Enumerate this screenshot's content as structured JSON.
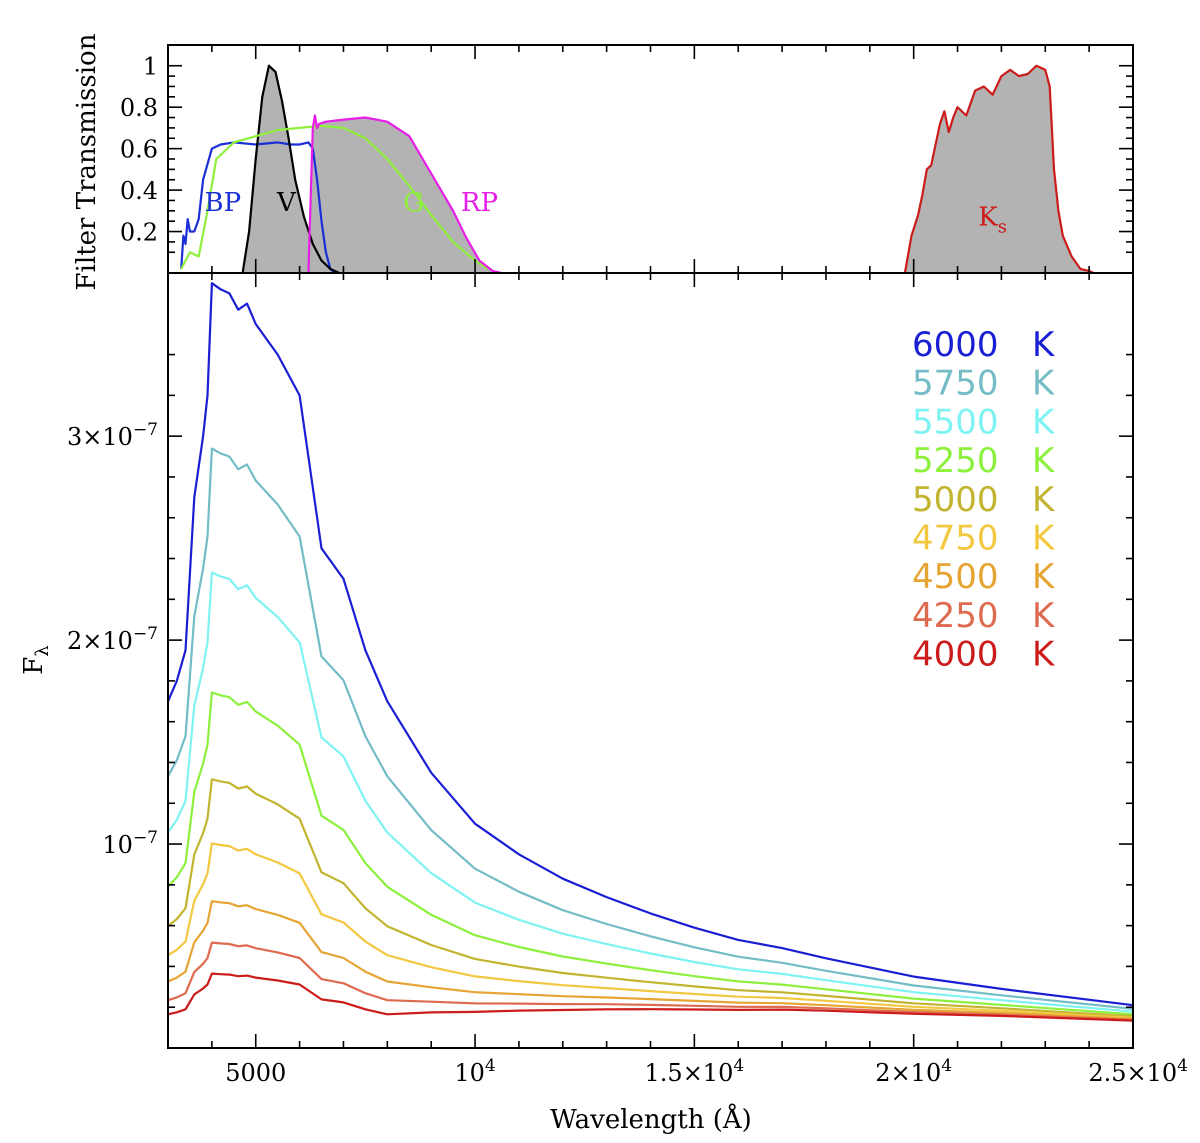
{
  "chart_data": [
    {
      "panel": "top",
      "type": "area",
      "ylabel": "Filter Transmission",
      "xlim": [
        3000,
        25000
      ],
      "ylim": [
        0,
        1.1
      ],
      "ytick_values": [
        0.2,
        0.4,
        0.6,
        0.8,
        1
      ],
      "ytick_labels": [
        "0.2",
        "0.4",
        "0.6",
        "0.8",
        "1"
      ],
      "series": [
        {
          "name": "BP",
          "label": "BP",
          "color": "#1a2fd6",
          "fill": false,
          "x": [
            3300,
            3350,
            3400,
            3450,
            3500,
            3600,
            3700,
            3800,
            4000,
            4200,
            4500,
            5000,
            5500,
            5800,
            6000,
            6200,
            6300,
            6400,
            6500,
            6600,
            6700,
            6800
          ],
          "y": [
            0.02,
            0.18,
            0.14,
            0.26,
            0.2,
            0.2,
            0.26,
            0.45,
            0.6,
            0.62,
            0.63,
            0.62,
            0.63,
            0.62,
            0.62,
            0.63,
            0.6,
            0.45,
            0.25,
            0.1,
            0.02,
            0
          ]
        },
        {
          "name": "V",
          "label": "V",
          "color": "#000000",
          "fill": true,
          "x": [
            4700,
            4850,
            5000,
            5150,
            5300,
            5450,
            5600,
            5750,
            5900,
            6100,
            6300,
            6500,
            6700,
            6900
          ],
          "y": [
            0,
            0.2,
            0.55,
            0.85,
            1.0,
            0.97,
            0.83,
            0.65,
            0.45,
            0.27,
            0.14,
            0.06,
            0.02,
            0
          ]
        },
        {
          "name": "G",
          "label": "G",
          "color": "#8ef03a",
          "fill": false,
          "x": [
            3300,
            3500,
            3700,
            3900,
            4100,
            4500,
            5000,
            5500,
            6000,
            6500,
            7000,
            7500,
            8000,
            8500,
            9000,
            9500,
            10000,
            10300
          ],
          "y": [
            0.02,
            0.1,
            0.08,
            0.3,
            0.55,
            0.63,
            0.66,
            0.69,
            0.7,
            0.71,
            0.7,
            0.65,
            0.55,
            0.42,
            0.28,
            0.15,
            0.06,
            0.02
          ]
        },
        {
          "name": "RP",
          "label": "RP",
          "color": "#e81de8",
          "fill": true,
          "x": [
            6200,
            6300,
            6350,
            6400,
            6450,
            6600,
            7000,
            7500,
            8000,
            8500,
            9000,
            9500,
            9800,
            10100,
            10400,
            10600
          ],
          "y": [
            0,
            0.7,
            0.76,
            0.7,
            0.72,
            0.73,
            0.74,
            0.75,
            0.73,
            0.66,
            0.48,
            0.3,
            0.17,
            0.06,
            0.01,
            0
          ]
        },
        {
          "name": "Ks",
          "label": "K",
          "label_sub": "s",
          "color": "#cc1b1b",
          "fill": true,
          "x": [
            19800,
            19950,
            20100,
            20200,
            20300,
            20400,
            20500,
            20600,
            20700,
            20800,
            20900,
            21000,
            21200,
            21400,
            21600,
            21800,
            22000,
            22200,
            22400,
            22600,
            22800,
            23000,
            23100,
            23200,
            23300,
            23400,
            23600,
            23800,
            24000,
            24100
          ],
          "y": [
            0,
            0.18,
            0.28,
            0.38,
            0.5,
            0.52,
            0.62,
            0.72,
            0.78,
            0.68,
            0.75,
            0.8,
            0.76,
            0.88,
            0.9,
            0.86,
            0.95,
            0.98,
            0.95,
            0.96,
            1.0,
            0.98,
            0.9,
            0.5,
            0.3,
            0.18,
            0.08,
            0.02,
            0.01,
            0
          ]
        }
      ]
    },
    {
      "panel": "bottom",
      "type": "line",
      "xlabel": "Wavelength (Å)",
      "ylabel": "F",
      "ylabel_sub": "λ",
      "xlim": [
        3000,
        25000
      ],
      "ylim": [
        0,
        3.8e-07
      ],
      "xtick_values": [
        5000,
        10000,
        15000,
        20000,
        25000
      ],
      "xtick_labels": [
        {
          "base": "5000",
          "exp": ""
        },
        {
          "base": "10",
          "exp": "4"
        },
        {
          "base": "1.5×10",
          "exp": "4"
        },
        {
          "base": "2×10",
          "exp": "4"
        },
        {
          "base": "2.5×10",
          "exp": "4"
        }
      ],
      "ytick_values": [
        1e-07,
        2e-07,
        3e-07
      ],
      "ytick_labels": [
        {
          "base": "10",
          "exp": "−7"
        },
        {
          "base": "2×10",
          "exp": "−7"
        },
        {
          "base": "3×10",
          "exp": "−7"
        }
      ],
      "shape_x": [
        3000,
        3200,
        3400,
        3600,
        3800,
        3900,
        4000,
        4200,
        4400,
        4600,
        4800,
        5000,
        5500,
        6000,
        6500,
        7000,
        7500,
        8000,
        9000,
        10000,
        11000,
        12000,
        13000,
        14000,
        15000,
        16000,
        17000,
        18000,
        20000,
        22000,
        25000
      ],
      "series": [
        {
          "name": "6000 K",
          "temperature": 6000,
          "color": "#1a1fd4",
          "peak": 3.7e-07,
          "values": [
            1.7e-07,
            1.8e-07,
            1.95e-07,
            2.7e-07,
            3e-07,
            3.2e-07,
            3.75e-07,
            3.72e-07,
            3.7e-07,
            3.62e-07,
            3.65e-07,
            3.55e-07,
            3.4e-07,
            3.2e-07,
            2.45e-07,
            2.3e-07,
            1.95e-07,
            1.7e-07,
            1.35e-07,
            1.1e-07,
            9.5e-08,
            8.3e-08,
            7.4e-08,
            6.6e-08,
            5.9e-08,
            5.3e-08,
            4.9e-08,
            4.4e-08,
            3.5e-08,
            2.9e-08,
            2.1e-08
          ]
        },
        {
          "name": "5750 K",
          "temperature": 5750,
          "color": "#74bcc6",
          "peak": 2.9e-07
        },
        {
          "name": "5500 K",
          "temperature": 5500,
          "color": "#7ff2f2",
          "peak": 2.3e-07
        },
        {
          "name": "5250 K",
          "temperature": 5250,
          "color": "#8cf03c",
          "peak": 1.72e-07
        },
        {
          "name": "5000 K",
          "temperature": 5000,
          "color": "#c2b42e",
          "peak": 1.3e-07
        },
        {
          "name": "4750 K",
          "temperature": 4750,
          "color": "#f2c840",
          "peak": 9.9e-08
        },
        {
          "name": "4500 K",
          "temperature": 4500,
          "color": "#e6a432",
          "peak": 7.1e-08
        },
        {
          "name": "4250 K",
          "temperature": 4250,
          "color": "#de6a50",
          "peak": 5.1e-08
        },
        {
          "name": "4000 K",
          "temperature": 4000,
          "color": "#cc1b1b",
          "peak": 3.6e-08
        }
      ],
      "legend": {
        "placement": "top-right",
        "entries": [
          {
            "number": "6000",
            "unit": "K",
            "color": "#1a1fd4"
          },
          {
            "number": "5750",
            "unit": "K",
            "color": "#74bcc6"
          },
          {
            "number": "5500",
            "unit": "K",
            "color": "#7ff2f2"
          },
          {
            "number": "5250",
            "unit": "K",
            "color": "#8cf03c"
          },
          {
            "number": "5000",
            "unit": "K",
            "color": "#c2b42e"
          },
          {
            "number": "4750",
            "unit": "K",
            "color": "#f2c840"
          },
          {
            "number": "4500",
            "unit": "K",
            "color": "#e6a432"
          },
          {
            "number": "4250",
            "unit": "K",
            "color": "#de6a50"
          },
          {
            "number": "4000",
            "unit": "K",
            "color": "#cc1b1b"
          }
        ]
      }
    }
  ]
}
